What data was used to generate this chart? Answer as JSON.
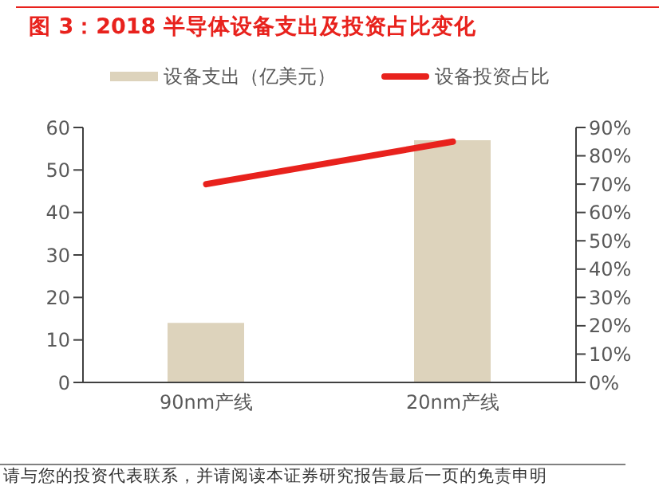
{
  "chart_data": {
    "type": "bar",
    "title": "图 3：2018 半导体设备支出及投资占比变化",
    "categories": [
      "90nm产线",
      "20nm产线"
    ],
    "series": [
      {
        "name": "设备支出（亿美元）",
        "color": "#ddd3bc",
        "values": [
          14,
          57
        ]
      },
      {
        "name": "设备投资占比",
        "type": "line",
        "axis": "y2",
        "color": "#e8221d",
        "values": [
          70,
          85
        ]
      }
    ],
    "ylim": [
      0,
      60
    ],
    "yticks": [
      0,
      10,
      20,
      30,
      40,
      50,
      60
    ],
    "y2lim": [
      0,
      90
    ],
    "y2ticks": [
      {
        "value": 0,
        "label": "0%"
      },
      {
        "value": 10,
        "label": "10%"
      },
      {
        "value": 20,
        "label": "20%"
      },
      {
        "value": 30,
        "label": "30%"
      },
      {
        "value": 40,
        "label": "40%"
      },
      {
        "value": 50,
        "label": "50%"
      },
      {
        "value": 60,
        "label": "60%"
      },
      {
        "value": 70,
        "label": "70%"
      },
      {
        "value": 80,
        "label": "80%"
      },
      {
        "value": 90,
        "label": "90%"
      }
    ],
    "legend": "top",
    "grid": false,
    "marker": "none",
    "annotations": [
      "请与您的投资代表联系，并请阅读本证券研究报告最后一页的免责申明"
    ]
  }
}
